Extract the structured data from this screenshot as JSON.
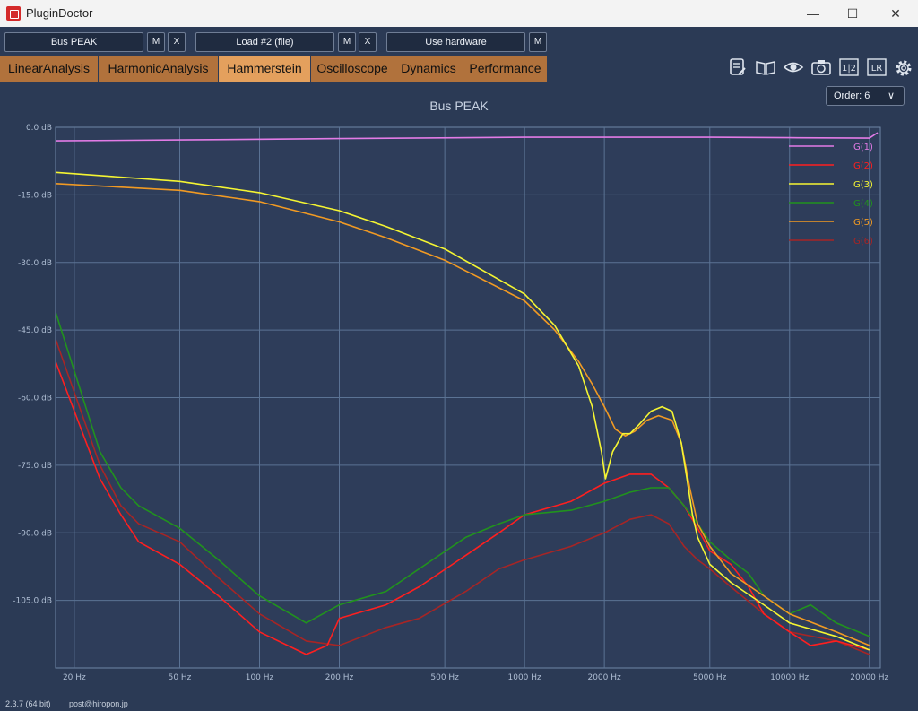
{
  "window": {
    "title": "PluginDoctor",
    "minimize": "—",
    "maximize": "☐",
    "close": "✕"
  },
  "toolbar": {
    "plugin": "Bus PEAK",
    "plugin_m": "M",
    "plugin_x": "X",
    "load": "Load #2 (file)",
    "load_m": "M",
    "load_x": "X",
    "hardware": "Use hardware",
    "hardware_m": "M"
  },
  "tabs": [
    "LinearAnalysis",
    "HarmonicAnalysis",
    "Hammerstein",
    "Oscilloscope",
    "Dynamics",
    "Performance"
  ],
  "active_tab": "Hammerstein",
  "tool_icons": [
    "notes-icon",
    "book-icon",
    "eye-icon",
    "camera-icon",
    "compare-icon",
    "lr-icon",
    "gear-icon"
  ],
  "tool_icon_glyphs": {
    "compare": "1|2",
    "lr": "LR"
  },
  "order": {
    "label": "Order: 6"
  },
  "footer": {
    "version": "2.3.7 (64 bit)",
    "contact": "post@hiropon.jp"
  },
  "chart_data": {
    "type": "line",
    "title": "Bus PEAK",
    "x_scale": "log",
    "xlim": [
      17,
      22000
    ],
    "ylim": [
      -120,
      0
    ],
    "grid": true,
    "legend_position": "top-right",
    "x_ticks": [
      {
        "v": 20,
        "label": "20 Hz"
      },
      {
        "v": 50,
        "label": "50 Hz"
      },
      {
        "v": 100,
        "label": "100 Hz"
      },
      {
        "v": 200,
        "label": "200 Hz"
      },
      {
        "v": 500,
        "label": "500 Hz"
      },
      {
        "v": 1000,
        "label": "1000 Hz"
      },
      {
        "v": 2000,
        "label": "2000 Hz"
      },
      {
        "v": 5000,
        "label": "5000 Hz"
      },
      {
        "v": 10000,
        "label": "10000 Hz"
      },
      {
        "v": 20000,
        "label": "20000 Hz"
      }
    ],
    "y_ticks": [
      {
        "v": 0,
        "label": "0.0 dB"
      },
      {
        "v": -15,
        "label": "-15.0 dB"
      },
      {
        "v": -30,
        "label": "-30.0 dB"
      },
      {
        "v": -45,
        "label": "-45.0 dB"
      },
      {
        "v": -60,
        "label": "-60.0 dB"
      },
      {
        "v": -75,
        "label": "-75.0 dB"
      },
      {
        "v": -90,
        "label": "-90.0 dB"
      },
      {
        "v": -105,
        "label": "-105.0 dB"
      }
    ],
    "series": [
      {
        "name": "G(1)",
        "color": "#e27be6",
        "points": [
          [
            17,
            -3.0
          ],
          [
            50,
            -2.8
          ],
          [
            200,
            -2.5
          ],
          [
            1000,
            -2.2
          ],
          [
            2000,
            -2.2
          ],
          [
            5000,
            -2.2
          ],
          [
            10000,
            -2.3
          ],
          [
            20000,
            -2.4
          ],
          [
            21500,
            -1.2
          ]
        ]
      },
      {
        "name": "G(2)",
        "color": "#ff1f1f",
        "points": [
          [
            17,
            -52
          ],
          [
            25,
            -78
          ],
          [
            30,
            -86
          ],
          [
            35,
            -92
          ],
          [
            50,
            -97
          ],
          [
            70,
            -104
          ],
          [
            100,
            -112
          ],
          [
            150,
            -117
          ],
          [
            180,
            -115
          ],
          [
            200,
            -109
          ],
          [
            300,
            -106
          ],
          [
            400,
            -102
          ],
          [
            600,
            -95
          ],
          [
            800,
            -90
          ],
          [
            1000,
            -86
          ],
          [
            1500,
            -83
          ],
          [
            2000,
            -79
          ],
          [
            2500,
            -77
          ],
          [
            3000,
            -77
          ],
          [
            3500,
            -80
          ],
          [
            4000,
            -84
          ],
          [
            4500,
            -89
          ],
          [
            5000,
            -94
          ],
          [
            6000,
            -97
          ],
          [
            7000,
            -102
          ],
          [
            8000,
            -108
          ],
          [
            10000,
            -112
          ],
          [
            12000,
            -115
          ],
          [
            15000,
            -114
          ],
          [
            20000,
            -116
          ]
        ]
      },
      {
        "name": "G(3)",
        "color": "#f5f532",
        "points": [
          [
            17,
            -10
          ],
          [
            50,
            -12
          ],
          [
            100,
            -14.5
          ],
          [
            200,
            -18.5
          ],
          [
            300,
            -22
          ],
          [
            500,
            -27
          ],
          [
            1000,
            -37
          ],
          [
            1300,
            -44
          ],
          [
            1600,
            -53
          ],
          [
            1800,
            -62
          ],
          [
            1950,
            -72
          ],
          [
            2020,
            -78
          ],
          [
            2150,
            -72
          ],
          [
            2350,
            -68
          ],
          [
            2500,
            -68
          ],
          [
            2700,
            -66
          ],
          [
            3000,
            -63
          ],
          [
            3300,
            -62
          ],
          [
            3600,
            -63
          ],
          [
            3900,
            -70
          ],
          [
            4100,
            -78
          ],
          [
            4300,
            -86
          ],
          [
            4500,
            -91
          ],
          [
            5000,
            -97
          ],
          [
            6000,
            -101
          ],
          [
            8000,
            -106
          ],
          [
            10000,
            -110
          ],
          [
            15000,
            -113
          ],
          [
            20000,
            -116
          ]
        ]
      },
      {
        "name": "G(4)",
        "color": "#21931d",
        "points": [
          [
            17,
            -41
          ],
          [
            25,
            -72
          ],
          [
            30,
            -80
          ],
          [
            35,
            -84
          ],
          [
            50,
            -89
          ],
          [
            70,
            -96
          ],
          [
            100,
            -104
          ],
          [
            150,
            -110
          ],
          [
            200,
            -106
          ],
          [
            300,
            -103
          ],
          [
            400,
            -98
          ],
          [
            600,
            -91
          ],
          [
            800,
            -88
          ],
          [
            1000,
            -86
          ],
          [
            1500,
            -85
          ],
          [
            2000,
            -83
          ],
          [
            2500,
            -81
          ],
          [
            3000,
            -80
          ],
          [
            3500,
            -80
          ],
          [
            4000,
            -84
          ],
          [
            4500,
            -88
          ],
          [
            5000,
            -92
          ],
          [
            6000,
            -96
          ],
          [
            7000,
            -99
          ],
          [
            8000,
            -104
          ],
          [
            10000,
            -108
          ],
          [
            12000,
            -106
          ],
          [
            15000,
            -110
          ],
          [
            20000,
            -113
          ]
        ]
      },
      {
        "name": "G(5)",
        "color": "#f19a23",
        "points": [
          [
            17,
            -12.5
          ],
          [
            50,
            -14
          ],
          [
            100,
            -16.5
          ],
          [
            200,
            -21
          ],
          [
            300,
            -24.5
          ],
          [
            500,
            -29.5
          ],
          [
            1000,
            -38.5
          ],
          [
            1300,
            -45
          ],
          [
            1600,
            -52
          ],
          [
            1800,
            -57
          ],
          [
            2000,
            -62
          ],
          [
            2200,
            -67
          ],
          [
            2400,
            -68.5
          ],
          [
            2600,
            -67.5
          ],
          [
            2900,
            -65
          ],
          [
            3200,
            -64
          ],
          [
            3600,
            -65
          ],
          [
            3900,
            -70
          ],
          [
            4200,
            -80
          ],
          [
            4500,
            -88
          ],
          [
            5000,
            -93
          ],
          [
            6000,
            -99
          ],
          [
            8000,
            -104
          ],
          [
            10000,
            -108
          ],
          [
            15000,
            -112
          ],
          [
            20000,
            -115
          ]
        ]
      },
      {
        "name": "G(6)",
        "color": "#a72525",
        "points": [
          [
            17,
            -47
          ],
          [
            25,
            -75
          ],
          [
            30,
            -84
          ],
          [
            35,
            -88
          ],
          [
            50,
            -92
          ],
          [
            70,
            -100
          ],
          [
            100,
            -108
          ],
          [
            150,
            -114
          ],
          [
            200,
            -115
          ],
          [
            300,
            -111
          ],
          [
            400,
            -109
          ],
          [
            600,
            -103
          ],
          [
            800,
            -98
          ],
          [
            1000,
            -96
          ],
          [
            1500,
            -93
          ],
          [
            2000,
            -90
          ],
          [
            2500,
            -87
          ],
          [
            3000,
            -86
          ],
          [
            3500,
            -88
          ],
          [
            4000,
            -93
          ],
          [
            4500,
            -96
          ],
          [
            5000,
            -98
          ],
          [
            6000,
            -102
          ],
          [
            8000,
            -108
          ],
          [
            10000,
            -112
          ],
          [
            15000,
            -114
          ],
          [
            20000,
            -117
          ]
        ]
      }
    ]
  }
}
